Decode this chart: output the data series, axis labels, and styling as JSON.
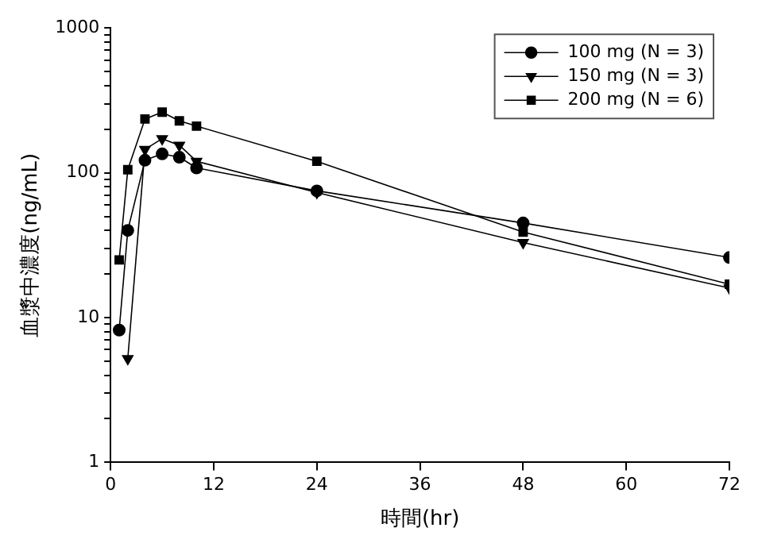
{
  "chart_data": {
    "type": "line",
    "xlabel": "時間(hr)",
    "ylabel": "血漿中濃度(ng/mL)",
    "log": "y",
    "xlim": [
      0,
      72
    ],
    "xticks": [
      0,
      12,
      24,
      36,
      48,
      60,
      72
    ],
    "ylim": [
      1,
      1000
    ],
    "yticks": [
      1,
      {
        "value": 2,
        "label": null
      },
      {
        "value": 3,
        "label": null
      },
      {
        "value": 4,
        "label": null
      },
      {
        "value": 5,
        "label": null
      },
      {
        "value": 6,
        "label": null
      },
      {
        "value": 7,
        "label": null
      },
      {
        "value": 8,
        "label": null
      },
      {
        "value": 9,
        "label": null
      },
      10,
      {
        "value": 20,
        "label": null
      },
      {
        "value": 30,
        "label": null
      },
      {
        "value": 40,
        "label": null
      },
      {
        "value": 50,
        "label": null
      },
      {
        "value": 60,
        "label": null
      },
      {
        "value": 70,
        "label": null
      },
      {
        "value": 80,
        "label": null
      },
      {
        "value": 90,
        "label": null
      },
      100,
      {
        "value": 200,
        "label": null
      },
      {
        "value": 300,
        "label": null
      },
      {
        "value": 400,
        "label": null
      },
      {
        "value": 500,
        "label": null
      },
      {
        "value": 600,
        "label": null
      },
      {
        "value": 700,
        "label": null
      },
      {
        "value": 800,
        "label": null
      },
      {
        "value": 900,
        "label": null
      },
      1000
    ],
    "grid": false,
    "legend": "top right",
    "line_style": "solid",
    "series": [
      {
        "name": "100 mg (N = 3)",
        "color": "#000000",
        "marker": "circle",
        "x": [
          1,
          2,
          4,
          6,
          8,
          10,
          24,
          48,
          72
        ],
        "values": [
          8.2,
          40,
          122,
          135,
          128,
          108,
          75,
          45,
          26
        ]
      },
      {
        "name": "150 mg (N = 3)",
        "color": "#000000",
        "marker": "triangle",
        "x": [
          2,
          4,
          6,
          8,
          10,
          24,
          48,
          72
        ],
        "values": [
          5.2,
          145,
          172,
          155,
          120,
          73,
          33,
          16
        ]
      },
      {
        "name": "200 mg (N = 6)",
        "color": "#000000",
        "marker": "square",
        "x": [
          1,
          2,
          4,
          6,
          8,
          10,
          24,
          48,
          72
        ],
        "values": [
          25,
          105,
          235,
          262,
          228,
          210,
          120,
          39,
          17
        ]
      }
    ]
  }
}
